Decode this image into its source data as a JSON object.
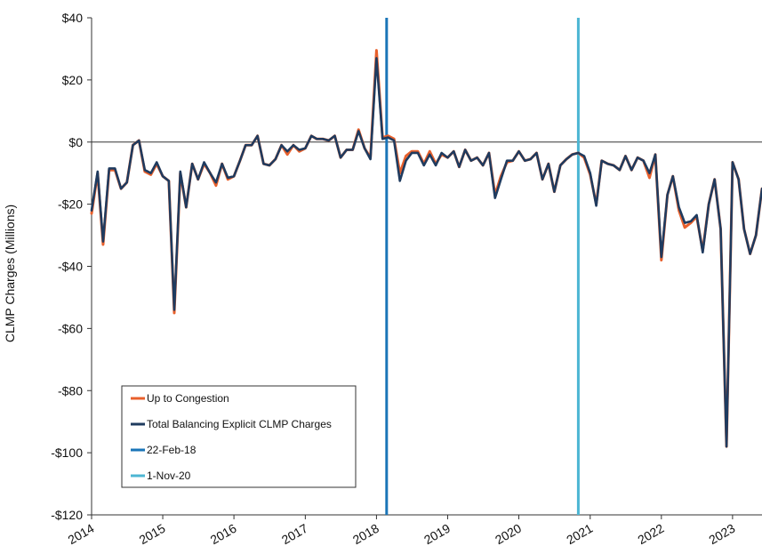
{
  "chart_data": {
    "type": "line",
    "xlabel": "",
    "ylabel": "CLMP Charges (Millions)",
    "ylim": [
      -120,
      40
    ],
    "xlim": [
      "2014-01-01",
      "2023-06-01"
    ],
    "grid": false,
    "legend_position": "bottom-left",
    "y_ticks": [
      {
        "value": 40,
        "label": "$40"
      },
      {
        "value": 20,
        "label": "$20"
      },
      {
        "value": 0,
        "label": "$0"
      },
      {
        "value": -20,
        "label": "-$20"
      },
      {
        "value": -40,
        "label": "-$40"
      },
      {
        "value": -60,
        "label": "-$60"
      },
      {
        "value": -80,
        "label": "-$80"
      },
      {
        "value": -100,
        "label": "-$100"
      },
      {
        "value": -120,
        "label": "-$120"
      }
    ],
    "x_ticks": [
      {
        "value": "2014-01-01",
        "label": "2014"
      },
      {
        "value": "2015-01-01",
        "label": "2015"
      },
      {
        "value": "2016-01-01",
        "label": "2016"
      },
      {
        "value": "2017-01-01",
        "label": "2017"
      },
      {
        "value": "2018-01-01",
        "label": "2018"
      },
      {
        "value": "2019-01-01",
        "label": "2019"
      },
      {
        "value": "2020-01-01",
        "label": "2020"
      },
      {
        "value": "2021-01-01",
        "label": "2021"
      },
      {
        "value": "2022-01-01",
        "label": "2022"
      },
      {
        "value": "2023-01-01",
        "label": "2023"
      }
    ],
    "series": [
      {
        "name": "Up to Congestion",
        "color": "#e8602c",
        "points": [
          [
            "2014-01-01",
            -23
          ],
          [
            "2014-02-01",
            -10
          ],
          [
            "2014-03-01",
            -33
          ],
          [
            "2014-04-01",
            -9
          ],
          [
            "2014-05-01",
            -9
          ],
          [
            "2014-06-01",
            -15
          ],
          [
            "2014-07-01",
            -13
          ],
          [
            "2014-08-01",
            -1
          ],
          [
            "2014-09-01",
            0.5
          ],
          [
            "2014-10-01",
            -9.5
          ],
          [
            "2014-11-01",
            -10.5
          ],
          [
            "2014-12-01",
            -7
          ],
          [
            "2015-01-01",
            -11
          ],
          [
            "2015-02-01",
            -12.5
          ],
          [
            "2015-03-01",
            -55
          ],
          [
            "2015-04-01",
            -10
          ],
          [
            "2015-05-01",
            -21
          ],
          [
            "2015-06-01",
            -7
          ],
          [
            "2015-07-01",
            -12
          ],
          [
            "2015-08-01",
            -7
          ],
          [
            "2015-09-01",
            -10
          ],
          [
            "2015-10-01",
            -14
          ],
          [
            "2015-11-01",
            -7
          ],
          [
            "2015-12-01",
            -12
          ],
          [
            "2016-01-01",
            -11
          ],
          [
            "2016-02-01",
            -6
          ],
          [
            "2016-03-01",
            -1
          ],
          [
            "2016-04-01",
            -1
          ],
          [
            "2016-05-01",
            2
          ],
          [
            "2016-06-01",
            -7
          ],
          [
            "2016-07-01",
            -7.5
          ],
          [
            "2016-08-01",
            -5.5
          ],
          [
            "2016-09-01",
            -1
          ],
          [
            "2016-10-01",
            -4
          ],
          [
            "2016-11-01",
            -1
          ],
          [
            "2016-12-01",
            -3
          ],
          [
            "2017-01-01",
            -2
          ],
          [
            "2017-02-01",
            2
          ],
          [
            "2017-03-01",
            1
          ],
          [
            "2017-04-01",
            1
          ],
          [
            "2017-05-01",
            0.5
          ],
          [
            "2017-06-01",
            2
          ],
          [
            "2017-07-01",
            -5
          ],
          [
            "2017-08-01",
            -2.5
          ],
          [
            "2017-09-01",
            -2.5
          ],
          [
            "2017-10-01",
            4
          ],
          [
            "2017-11-01",
            -2
          ],
          [
            "2017-12-01",
            -5
          ],
          [
            "2018-01-01",
            29.5
          ],
          [
            "2018-02-01",
            1.5
          ],
          [
            "2018-03-01",
            2
          ],
          [
            "2018-04-01",
            1
          ],
          [
            "2018-05-01",
            -10
          ],
          [
            "2018-06-01",
            -4.5
          ],
          [
            "2018-07-01",
            -3
          ],
          [
            "2018-08-01",
            -3
          ],
          [
            "2018-09-01",
            -7
          ],
          [
            "2018-10-01",
            -3
          ],
          [
            "2018-11-01",
            -7
          ],
          [
            "2018-12-01",
            -4
          ],
          [
            "2019-01-01",
            -5
          ],
          [
            "2019-02-01",
            -3
          ],
          [
            "2019-03-01",
            -8
          ],
          [
            "2019-04-01",
            -2.5
          ],
          [
            "2019-05-01",
            -6
          ],
          [
            "2019-06-01",
            -5
          ],
          [
            "2019-07-01",
            -7.5
          ],
          [
            "2019-08-01",
            -3.5
          ],
          [
            "2019-09-01",
            -17
          ],
          [
            "2019-10-01",
            -11
          ],
          [
            "2019-11-01",
            -6.5
          ],
          [
            "2019-12-01",
            -6
          ],
          [
            "2020-01-01",
            -3
          ],
          [
            "2020-02-01",
            -6
          ],
          [
            "2020-03-01",
            -5.5
          ],
          [
            "2020-04-01",
            -3.5
          ],
          [
            "2020-05-01",
            -12
          ],
          [
            "2020-06-01",
            -7
          ],
          [
            "2020-07-01",
            -16
          ],
          [
            "2020-08-01",
            -7.5
          ],
          [
            "2020-09-01",
            -5.5
          ],
          [
            "2020-10-01",
            -4
          ],
          [
            "2020-11-01",
            -3.5
          ],
          [
            "2020-12-01",
            -5
          ],
          [
            "2021-01-01",
            -10.5
          ],
          [
            "2021-02-01",
            -20
          ],
          [
            "2021-03-01",
            -6
          ],
          [
            "2021-04-01",
            -7
          ],
          [
            "2021-05-01",
            -7.5
          ],
          [
            "2021-06-01",
            -9
          ],
          [
            "2021-07-01",
            -4.5
          ],
          [
            "2021-08-01",
            -9
          ],
          [
            "2021-09-01",
            -5
          ],
          [
            "2021-10-01",
            -6
          ],
          [
            "2021-11-01",
            -11.5
          ],
          [
            "2021-12-01",
            -4
          ],
          [
            "2022-01-01",
            -38
          ],
          [
            "2022-02-01",
            -17
          ],
          [
            "2022-03-01",
            -11
          ],
          [
            "2022-04-01",
            -22
          ],
          [
            "2022-05-01",
            -27.5
          ],
          [
            "2022-06-01",
            -26
          ],
          [
            "2022-07-01",
            -24
          ],
          [
            "2022-08-01",
            -35
          ],
          [
            "2022-09-01",
            -20
          ],
          [
            "2022-10-01",
            -12
          ],
          [
            "2022-11-01",
            -28
          ],
          [
            "2022-12-01",
            -98
          ],
          [
            "2023-01-01",
            -6.5
          ],
          [
            "2023-02-01",
            -12
          ],
          [
            "2023-03-01",
            -28
          ],
          [
            "2023-04-01",
            -36
          ],
          [
            "2023-05-01",
            -30
          ],
          [
            "2023-06-01",
            -15
          ]
        ]
      },
      {
        "name": "Total Balancing Explicit CLMP Charges",
        "color": "#1f3b5f",
        "points": [
          [
            "2014-01-01",
            -22
          ],
          [
            "2014-02-01",
            -9.5
          ],
          [
            "2014-03-01",
            -32
          ],
          [
            "2014-04-01",
            -8.5
          ],
          [
            "2014-05-01",
            -8.5
          ],
          [
            "2014-06-01",
            -15
          ],
          [
            "2014-07-01",
            -13
          ],
          [
            "2014-08-01",
            -1
          ],
          [
            "2014-09-01",
            0.5
          ],
          [
            "2014-10-01",
            -9
          ],
          [
            "2014-11-01",
            -10
          ],
          [
            "2014-12-01",
            -6.5
          ],
          [
            "2015-01-01",
            -11
          ],
          [
            "2015-02-01",
            -12.5
          ],
          [
            "2015-03-01",
            -54
          ],
          [
            "2015-04-01",
            -9.5
          ],
          [
            "2015-05-01",
            -21
          ],
          [
            "2015-06-01",
            -7
          ],
          [
            "2015-07-01",
            -12
          ],
          [
            "2015-08-01",
            -6.5
          ],
          [
            "2015-09-01",
            -10
          ],
          [
            "2015-10-01",
            -13
          ],
          [
            "2015-11-01",
            -7
          ],
          [
            "2015-12-01",
            -11.5
          ],
          [
            "2016-01-01",
            -11
          ],
          [
            "2016-02-01",
            -6
          ],
          [
            "2016-03-01",
            -1
          ],
          [
            "2016-04-01",
            -1
          ],
          [
            "2016-05-01",
            2
          ],
          [
            "2016-06-01",
            -7
          ],
          [
            "2016-07-01",
            -7.5
          ],
          [
            "2016-08-01",
            -5.5
          ],
          [
            "2016-09-01",
            -1
          ],
          [
            "2016-10-01",
            -3
          ],
          [
            "2016-11-01",
            -1
          ],
          [
            "2016-12-01",
            -2.5
          ],
          [
            "2017-01-01",
            -2
          ],
          [
            "2017-02-01",
            2
          ],
          [
            "2017-03-01",
            1
          ],
          [
            "2017-04-01",
            1
          ],
          [
            "2017-05-01",
            0.5
          ],
          [
            "2017-06-01",
            2
          ],
          [
            "2017-07-01",
            -5
          ],
          [
            "2017-08-01",
            -2.5
          ],
          [
            "2017-09-01",
            -2.5
          ],
          [
            "2017-10-01",
            3.5
          ],
          [
            "2017-11-01",
            -2
          ],
          [
            "2017-12-01",
            -5.5
          ],
          [
            "2018-01-01",
            27
          ],
          [
            "2018-02-01",
            1
          ],
          [
            "2018-03-01",
            1.5
          ],
          [
            "2018-04-01",
            0.5
          ],
          [
            "2018-05-01",
            -12.5
          ],
          [
            "2018-06-01",
            -6
          ],
          [
            "2018-07-01",
            -3.5
          ],
          [
            "2018-08-01",
            -3.5
          ],
          [
            "2018-09-01",
            -7.5
          ],
          [
            "2018-10-01",
            -4
          ],
          [
            "2018-11-01",
            -7.5
          ],
          [
            "2018-12-01",
            -3.5
          ],
          [
            "2019-01-01",
            -5
          ],
          [
            "2019-02-01",
            -3
          ],
          [
            "2019-03-01",
            -8
          ],
          [
            "2019-04-01",
            -2.5
          ],
          [
            "2019-05-01",
            -6
          ],
          [
            "2019-06-01",
            -5
          ],
          [
            "2019-07-01",
            -7.5
          ],
          [
            "2019-08-01",
            -3.5
          ],
          [
            "2019-09-01",
            -18
          ],
          [
            "2019-10-01",
            -12
          ],
          [
            "2019-11-01",
            -6
          ],
          [
            "2019-12-01",
            -6
          ],
          [
            "2020-01-01",
            -3
          ],
          [
            "2020-02-01",
            -6
          ],
          [
            "2020-03-01",
            -5.5
          ],
          [
            "2020-04-01",
            -3.5
          ],
          [
            "2020-05-01",
            -12
          ],
          [
            "2020-06-01",
            -7
          ],
          [
            "2020-07-01",
            -16
          ],
          [
            "2020-08-01",
            -7.5
          ],
          [
            "2020-09-01",
            -5.5
          ],
          [
            "2020-10-01",
            -4
          ],
          [
            "2020-11-01",
            -3.5
          ],
          [
            "2020-12-01",
            -4.5
          ],
          [
            "2021-01-01",
            -10
          ],
          [
            "2021-02-01",
            -20.5
          ],
          [
            "2021-03-01",
            -6
          ],
          [
            "2021-04-01",
            -7
          ],
          [
            "2021-05-01",
            -7.5
          ],
          [
            "2021-06-01",
            -9
          ],
          [
            "2021-07-01",
            -4.5
          ],
          [
            "2021-08-01",
            -9
          ],
          [
            "2021-09-01",
            -5
          ],
          [
            "2021-10-01",
            -6
          ],
          [
            "2021-11-01",
            -10
          ],
          [
            "2021-12-01",
            -4
          ],
          [
            "2022-01-01",
            -37
          ],
          [
            "2022-02-01",
            -17
          ],
          [
            "2022-03-01",
            -11
          ],
          [
            "2022-04-01",
            -21
          ],
          [
            "2022-05-01",
            -26
          ],
          [
            "2022-06-01",
            -25.5
          ],
          [
            "2022-07-01",
            -23.5
          ],
          [
            "2022-08-01",
            -35.5
          ],
          [
            "2022-09-01",
            -20
          ],
          [
            "2022-10-01",
            -12
          ],
          [
            "2022-11-01",
            -28
          ],
          [
            "2022-12-01",
            -98
          ],
          [
            "2023-01-01",
            -6.5
          ],
          [
            "2023-02-01",
            -12
          ],
          [
            "2023-03-01",
            -28
          ],
          [
            "2023-04-01",
            -36
          ],
          [
            "2023-05-01",
            -30
          ],
          [
            "2023-06-01",
            -15
          ]
        ]
      }
    ],
    "reference_lines": [
      {
        "name": "22-Feb-18",
        "date": "2018-02-22",
        "color": "#1a75b8"
      },
      {
        "name": "1-Nov-20",
        "date": "2020-11-01",
        "color": "#4cb6d3"
      }
    ]
  }
}
